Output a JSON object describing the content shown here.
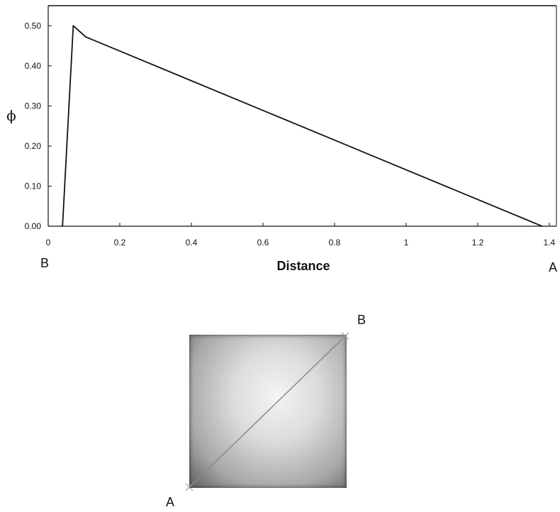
{
  "chart_data": {
    "type": "line",
    "title": "",
    "xlabel": "Distance",
    "ylabel": "ϕ",
    "xlim": [
      0,
      1.42
    ],
    "ylim": [
      0,
      0.55
    ],
    "grid": false,
    "x_ticks": [
      {
        "value": 0,
        "label": "0"
      },
      {
        "value": 0.2,
        "label": "0.2"
      },
      {
        "value": 0.4,
        "label": "0.4"
      },
      {
        "value": 0.6,
        "label": "0.6"
      },
      {
        "value": 0.8,
        "label": "0.8"
      },
      {
        "value": 1.0,
        "label": "1"
      },
      {
        "value": 1.2,
        "label": "1.2"
      },
      {
        "value": 1.4,
        "label": "1.4"
      }
    ],
    "y_ticks": [
      {
        "value": 0,
        "label": "0.00"
      },
      {
        "value": 0.1,
        "label": "0.10"
      },
      {
        "value": 0.2,
        "label": "0.20"
      },
      {
        "value": 0.3,
        "label": "0.30"
      },
      {
        "value": 0.4,
        "label": "0.40"
      },
      {
        "value": 0.5,
        "label": "0.50"
      }
    ],
    "series": [
      {
        "x": [
          0.04,
          0.07,
          0.105,
          1.38
        ],
        "y": [
          0.0,
          0.5,
          0.472,
          0.0
        ]
      }
    ],
    "line_color": "#111111",
    "end_labels": {
      "left": "B",
      "right": "A"
    }
  },
  "inset": {
    "start_label": "A",
    "end_label": "B"
  }
}
